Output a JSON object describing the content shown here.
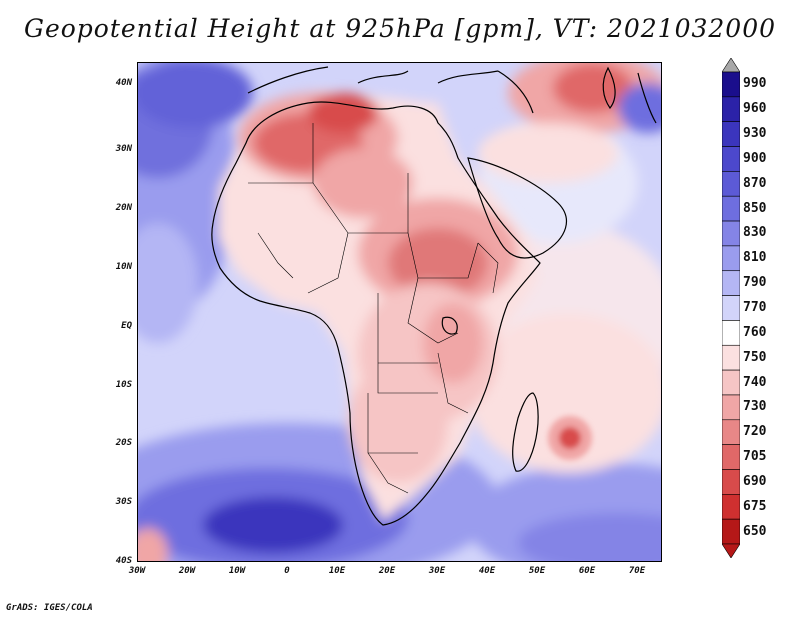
{
  "title": "Geopotential Height at 925hPa [gpm], VT: 2021032000",
  "credit": "GrADS: IGES/COLA",
  "map": {
    "lon_range": [
      -30,
      75
    ],
    "lat_range": [
      -40,
      45
    ],
    "lat_ticks": [
      {
        "value": 40,
        "label": "40N"
      },
      {
        "value": 30,
        "label": "30N"
      },
      {
        "value": 20,
        "label": "20N"
      },
      {
        "value": 10,
        "label": "10N"
      },
      {
        "value": 0,
        "label": "EQ"
      },
      {
        "value": -10,
        "label": "10S"
      },
      {
        "value": -20,
        "label": "20S"
      },
      {
        "value": -30,
        "label": "30S"
      },
      {
        "value": -40,
        "label": "40S"
      }
    ],
    "lon_ticks": [
      {
        "value": -30,
        "label": "30W"
      },
      {
        "value": -20,
        "label": "20W"
      },
      {
        "value": -10,
        "label": "10W"
      },
      {
        "value": 0,
        "label": "0"
      },
      {
        "value": 10,
        "label": "10E"
      },
      {
        "value": 20,
        "label": "20E"
      },
      {
        "value": 30,
        "label": "30E"
      },
      {
        "value": 40,
        "label": "40E"
      },
      {
        "value": 50,
        "label": "50E"
      },
      {
        "value": 60,
        "label": "60E"
      },
      {
        "value": 70,
        "label": "70E"
      }
    ]
  },
  "colorbar": {
    "levels": [
      "990",
      "960",
      "930",
      "900",
      "870",
      "850",
      "830",
      "810",
      "790",
      "770",
      "760",
      "750",
      "740",
      "730",
      "720",
      "705",
      "690",
      "675",
      "650"
    ],
    "colors": [
      "#1a0e8c",
      "#2b22a8",
      "#3b35bd",
      "#4c48cc",
      "#5c5ad6",
      "#6e6edf",
      "#8484e6",
      "#9a9cee",
      "#b4b6f4",
      "#d2d4fa",
      "#ffffff",
      "#fbe0e0",
      "#f6c5c5",
      "#f0a6a6",
      "#e88787",
      "#e06868",
      "#d84b4b",
      "#cf3030",
      "#b51818"
    ],
    "top_arrow_color": "#a8a8a8",
    "bottom_arrow_color": "#b51818"
  }
}
